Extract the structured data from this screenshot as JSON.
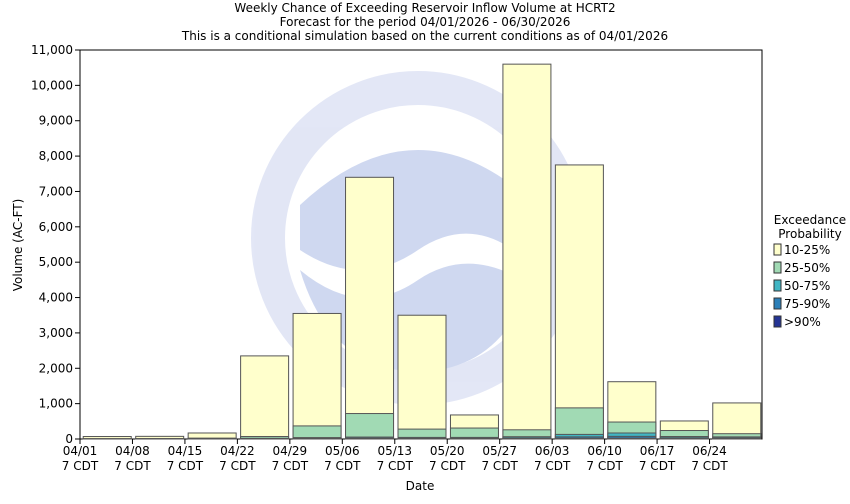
{
  "chart_data": {
    "type": "bar",
    "title_lines": [
      "Weekly Chance of Exceeding Reservoir Inflow Volume at HCRT2",
      "Forecast for the period 04/01/2026 - 06/30/2026",
      "This is a conditional simulation based on the current conditions as of 04/01/2026"
    ],
    "xlabel": "Date",
    "ylabel": "Volume (AC-FT)",
    "ylim": [
      0,
      11000
    ],
    "yticks": [
      0,
      1000,
      2000,
      3000,
      4000,
      5000,
      6000,
      7000,
      8000,
      9000,
      10000,
      11000
    ],
    "ytick_labels": [
      "0",
      "1,000",
      "2,000",
      "3,000",
      "4,000",
      "5,000",
      "6,000",
      "7,000",
      "8,000",
      "9,000",
      "10,000",
      "11,000"
    ],
    "xtick_labels": [
      {
        "date": "04/01",
        "tz": "7 CDT"
      },
      {
        "date": "04/08",
        "tz": "7 CDT"
      },
      {
        "date": "04/15",
        "tz": "7 CDT"
      },
      {
        "date": "04/22",
        "tz": "7 CDT"
      },
      {
        "date": "04/29",
        "tz": "7 CDT"
      },
      {
        "date": "05/06",
        "tz": "7 CDT"
      },
      {
        "date": "05/13",
        "tz": "7 CDT"
      },
      {
        "date": "05/20",
        "tz": "7 CDT"
      },
      {
        "date": "05/27",
        "tz": "7 CDT"
      },
      {
        "date": "06/03",
        "tz": "7 CDT"
      },
      {
        "date": "06/10",
        "tz": "7 CDT"
      },
      {
        "date": "06/17",
        "tz": "7 CDT"
      },
      {
        "date": "06/24",
        "tz": "7 CDT"
      }
    ],
    "categories": [
      "04/01",
      "04/08",
      "04/15",
      "04/22",
      "04/29",
      "05/06",
      "05/13",
      "05/20",
      "05/27",
      "06/03",
      "06/10",
      "06/17",
      "06/24"
    ],
    "series": [
      {
        "name": "10-25%",
        "color": "#ffffcc",
        "values": [
          70,
          75,
          170,
          2350,
          3550,
          7400,
          3500,
          680,
          10600,
          7750,
          1620,
          510,
          1020
        ]
      },
      {
        "name": "25-50%",
        "color": "#a1dab4",
        "values": [
          10,
          12,
          25,
          70,
          370,
          720,
          280,
          310,
          260,
          880,
          480,
          240,
          150
        ]
      },
      {
        "name": "50-75%",
        "color": "#41b6c4",
        "values": [
          4,
          5,
          8,
          20,
          40,
          55,
          45,
          45,
          65,
          130,
          170,
          70,
          60
        ]
      },
      {
        "name": "75-90%",
        "color": "#2c7fb8",
        "values": [
          2,
          3,
          4,
          8,
          18,
          25,
          20,
          20,
          30,
          60,
          75,
          35,
          30
        ]
      },
      {
        "name": ">90%",
        "color": "#253494",
        "values": [
          1,
          1,
          2,
          4,
          8,
          10,
          8,
          8,
          12,
          20,
          25,
          12,
          10
        ]
      }
    ],
    "legend": {
      "title_lines": [
        "Exceedance",
        "Probability"
      ],
      "placement": "right"
    },
    "grid": false
  }
}
